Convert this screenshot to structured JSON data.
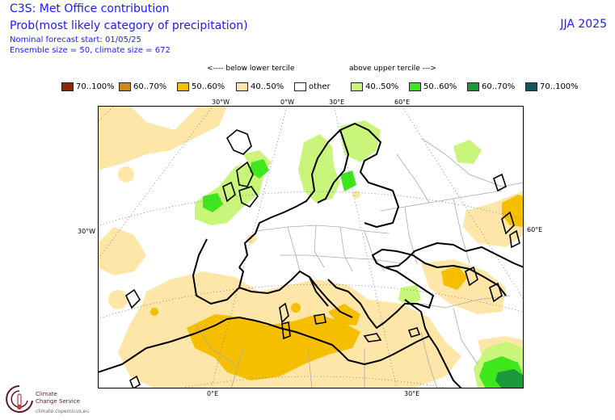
{
  "header": {
    "title": "C3S: Met Office contribution",
    "subtitle": "Prob(most likely category of precipitation)",
    "forecast_start": "Nominal forecast start: 01/05/25",
    "ensemble": "Ensemble size = 50, climate size = 672",
    "season": "JJA 2025"
  },
  "legend": {
    "below_label": "<---- below lower tercile",
    "above_label": "above upper tercile --->",
    "items": [
      {
        "label": "70..100%",
        "color": "#8b2a05"
      },
      {
        "label": "60..70%",
        "color": "#cc8a1a"
      },
      {
        "label": "50..60%",
        "color": "#f5bf00"
      },
      {
        "label": "40..50%",
        "color": "#fde6a8"
      },
      {
        "label": "other",
        "color": "#ffffff"
      },
      {
        "label": "40..50%",
        "color": "#c8f57a"
      },
      {
        "label": "50..60%",
        "color": "#3ee61c"
      },
      {
        "label": "60..70%",
        "color": "#1a9a3a"
      },
      {
        "label": "70..100%",
        "color": "#0d5a5a"
      }
    ]
  },
  "map": {
    "graticule": {
      "top": [
        "30°W",
        "0°W",
        "30°E",
        "60°E"
      ],
      "left": "30°W",
      "right": "60°E",
      "bottom": [
        "0°E",
        "30°E"
      ]
    }
  },
  "logo": {
    "line1": "Climate",
    "line2": "Change Service",
    "url": "climate.copernicus.eu"
  }
}
